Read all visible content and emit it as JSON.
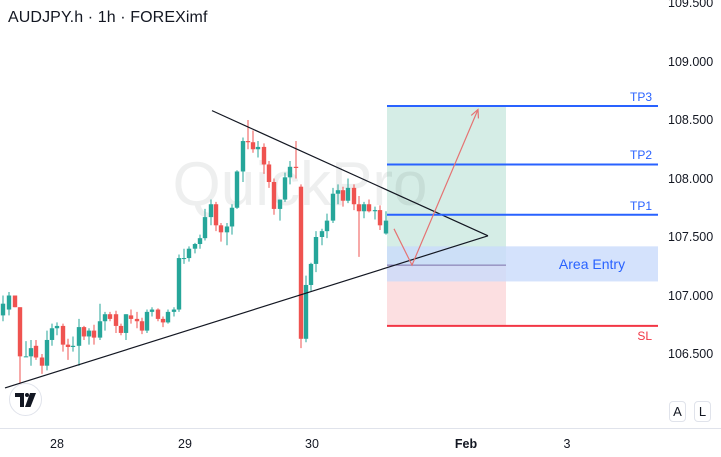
{
  "header": {
    "title": "AUDJPY.h · 1h · FOREXimf"
  },
  "watermark": "QuickPro",
  "price_axis": {
    "labels": [
      "109.500",
      "109.000",
      "108.500",
      "108.000",
      "107.500",
      "107.000",
      "106.500"
    ]
  },
  "time_axis": {
    "labels": [
      "28",
      "29",
      "30",
      "Feb",
      "3"
    ]
  },
  "scale_buttons": {
    "auto": "A",
    "log": "L"
  },
  "levels": {
    "tp3": "TP3",
    "tp2": "TP2",
    "tp1": "TP1",
    "area_entry": "Area Entry",
    "sl": "SL"
  },
  "colors": {
    "up": "#26a69a",
    "down": "#ef5350",
    "tp_line": "#2962ff",
    "sl_line": "#f23645",
    "profit_zone": "#d5ede6",
    "loss_zone": "#fcdfe1",
    "entry_zone": "#c9dbfb",
    "arrow": "#e57373"
  },
  "chart_data": {
    "type": "candlestick",
    "title": "AUDJPY.h · 1h · FOREXimf",
    "xlabel": "",
    "ylabel": "",
    "ylim": [
      106.2,
      109.5
    ],
    "x_ticks": [
      "28",
      "29",
      "30",
      "Feb",
      "3"
    ],
    "y_ticks": [
      106.5,
      107.0,
      107.5,
      108.0,
      108.5,
      109.0,
      109.5
    ],
    "grid": false,
    "annotations": {
      "TP3": 108.62,
      "TP2": 108.12,
      "TP1": 107.69,
      "Area Entry": [
        107.12,
        107.42
      ],
      "entry_price": 107.26,
      "SL": 106.74,
      "symmetrical_triangle": {
        "upper_line": [
          [
            212,
            108.58
          ],
          [
            488,
            107.51
          ]
        ],
        "lower_line": [
          [
            5,
            106.21
          ],
          [
            488,
            107.51
          ]
        ]
      },
      "projected_path": [
        [
          394,
          107.57
        ],
        [
          412,
          107.26
        ],
        [
          478,
          108.59
        ]
      ]
    },
    "candles": [
      {
        "x": 3,
        "o": 106.83,
        "h": 107.0,
        "l": 106.78,
        "c": 106.93
      },
      {
        "x": 9,
        "o": 106.88,
        "h": 107.03,
        "l": 106.83,
        "c": 107.0
      },
      {
        "x": 15,
        "o": 107.0,
        "h": 107.0,
        "l": 106.9,
        "c": 106.9
      },
      {
        "x": 20,
        "o": 106.9,
        "h": 106.9,
        "l": 106.22,
        "c": 106.48
      },
      {
        "x": 26,
        "o": 106.48,
        "h": 106.61,
        "l": 106.48,
        "c": 106.48
      },
      {
        "x": 31,
        "o": 106.48,
        "h": 106.62,
        "l": 106.4,
        "c": 106.55
      },
      {
        "x": 36,
        "o": 106.57,
        "h": 106.62,
        "l": 106.45,
        "c": 106.47
      },
      {
        "x": 42,
        "o": 106.47,
        "h": 106.5,
        "l": 106.33,
        "c": 106.4
      },
      {
        "x": 47,
        "o": 106.4,
        "h": 106.7,
        "l": 106.36,
        "c": 106.62
      },
      {
        "x": 52,
        "o": 106.62,
        "h": 106.76,
        "l": 106.57,
        "c": 106.72
      },
      {
        "x": 57,
        "o": 106.72,
        "h": 106.77,
        "l": 106.66,
        "c": 106.74
      },
      {
        "x": 63,
        "o": 106.74,
        "h": 106.76,
        "l": 106.52,
        "c": 106.58
      },
      {
        "x": 68,
        "o": 106.58,
        "h": 106.63,
        "l": 106.45,
        "c": 106.56
      },
      {
        "x": 73,
        "o": 106.56,
        "h": 106.65,
        "l": 106.52,
        "c": 106.57
      },
      {
        "x": 79,
        "o": 106.57,
        "h": 106.8,
        "l": 106.4,
        "c": 106.73
      },
      {
        "x": 84,
        "o": 106.73,
        "h": 106.74,
        "l": 106.62,
        "c": 106.65
      },
      {
        "x": 89,
        "o": 106.65,
        "h": 106.72,
        "l": 106.58,
        "c": 106.7
      },
      {
        "x": 94,
        "o": 106.7,
        "h": 106.75,
        "l": 106.58,
        "c": 106.64
      },
      {
        "x": 100,
        "o": 106.64,
        "h": 106.93,
        "l": 106.62,
        "c": 106.78
      },
      {
        "x": 105,
        "o": 106.78,
        "h": 106.86,
        "l": 106.7,
        "c": 106.84
      },
      {
        "x": 110,
        "o": 106.84,
        "h": 106.86,
        "l": 106.78,
        "c": 106.8
      },
      {
        "x": 116,
        "o": 106.84,
        "h": 106.87,
        "l": 106.68,
        "c": 106.74
      },
      {
        "x": 121,
        "o": 106.74,
        "h": 106.76,
        "l": 106.66,
        "c": 106.68
      },
      {
        "x": 126,
        "o": 106.68,
        "h": 106.84,
        "l": 106.62,
        "c": 106.84
      },
      {
        "x": 131,
        "o": 106.83,
        "h": 106.88,
        "l": 106.76,
        "c": 106.8
      },
      {
        "x": 137,
        "o": 106.8,
        "h": 106.86,
        "l": 106.72,
        "c": 106.78
      },
      {
        "x": 142,
        "o": 106.78,
        "h": 106.81,
        "l": 106.67,
        "c": 106.7
      },
      {
        "x": 147,
        "o": 106.7,
        "h": 106.88,
        "l": 106.68,
        "c": 106.86
      },
      {
        "x": 152,
        "o": 106.86,
        "h": 106.9,
        "l": 106.82,
        "c": 106.88
      },
      {
        "x": 158,
        "o": 106.88,
        "h": 106.89,
        "l": 106.78,
        "c": 106.8
      },
      {
        "x": 163,
        "o": 106.8,
        "h": 106.82,
        "l": 106.73,
        "c": 106.77
      },
      {
        "x": 168,
        "o": 106.77,
        "h": 106.88,
        "l": 106.76,
        "c": 106.86
      },
      {
        "x": 174,
        "o": 106.86,
        "h": 106.9,
        "l": 106.82,
        "c": 106.88
      },
      {
        "x": 179,
        "o": 106.88,
        "h": 107.35,
        "l": 106.86,
        "c": 107.32
      },
      {
        "x": 184,
        "o": 107.32,
        "h": 107.4,
        "l": 107.27,
        "c": 107.32
      },
      {
        "x": 189,
        "o": 107.32,
        "h": 107.42,
        "l": 107.29,
        "c": 107.4
      },
      {
        "x": 195,
        "o": 107.4,
        "h": 107.45,
        "l": 107.36,
        "c": 107.44
      },
      {
        "x": 200,
        "o": 107.44,
        "h": 107.52,
        "l": 107.4,
        "c": 107.49
      },
      {
        "x": 205,
        "o": 107.49,
        "h": 107.74,
        "l": 107.47,
        "c": 107.67
      },
      {
        "x": 211,
        "o": 107.67,
        "h": 107.82,
        "l": 107.6,
        "c": 107.78
      },
      {
        "x": 216,
        "o": 107.78,
        "h": 107.8,
        "l": 107.55,
        "c": 107.6
      },
      {
        "x": 221,
        "o": 107.6,
        "h": 107.62,
        "l": 107.46,
        "c": 107.54
      },
      {
        "x": 227,
        "o": 107.54,
        "h": 107.62,
        "l": 107.43,
        "c": 107.59
      },
      {
        "x": 232,
        "o": 107.59,
        "h": 107.78,
        "l": 107.52,
        "c": 107.75
      },
      {
        "x": 237,
        "o": 107.75,
        "h": 108.07,
        "l": 107.74,
        "c": 108.06
      },
      {
        "x": 243,
        "o": 108.06,
        "h": 108.35,
        "l": 107.97,
        "c": 108.32
      },
      {
        "x": 248,
        "o": 108.32,
        "h": 108.5,
        "l": 108.25,
        "c": 108.31
      },
      {
        "x": 253,
        "o": 108.31,
        "h": 108.41,
        "l": 108.22,
        "c": 108.25
      },
      {
        "x": 258,
        "o": 108.25,
        "h": 108.32,
        "l": 108.18,
        "c": 108.27
      },
      {
        "x": 264,
        "o": 108.27,
        "h": 108.3,
        "l": 108.04,
        "c": 108.12
      },
      {
        "x": 269,
        "o": 108.12,
        "h": 108.15,
        "l": 107.92,
        "c": 107.97
      },
      {
        "x": 274,
        "o": 107.97,
        "h": 108.0,
        "l": 107.69,
        "c": 107.74
      },
      {
        "x": 280,
        "o": 107.74,
        "h": 107.82,
        "l": 107.64,
        "c": 107.82
      },
      {
        "x": 285,
        "o": 107.82,
        "h": 108.05,
        "l": 107.8,
        "c": 108.01
      },
      {
        "x": 290,
        "o": 108.01,
        "h": 108.15,
        "l": 107.95,
        "c": 108.1
      },
      {
        "x": 296,
        "o": 108.1,
        "h": 108.32,
        "l": 108.0,
        "c": 108.09
      },
      {
        "x": 301,
        "o": 107.93,
        "h": 107.95,
        "l": 106.55,
        "c": 106.63
      },
      {
        "x": 306,
        "o": 106.63,
        "h": 107.17,
        "l": 106.6,
        "c": 107.09
      },
      {
        "x": 311,
        "o": 107.09,
        "h": 107.28,
        "l": 107.04,
        "c": 107.27
      },
      {
        "x": 316,
        "o": 107.27,
        "h": 107.55,
        "l": 107.2,
        "c": 107.5
      },
      {
        "x": 322,
        "o": 107.5,
        "h": 107.57,
        "l": 107.43,
        "c": 107.55
      },
      {
        "x": 327,
        "o": 107.55,
        "h": 107.7,
        "l": 107.49,
        "c": 107.64
      },
      {
        "x": 333,
        "o": 107.64,
        "h": 107.92,
        "l": 107.62,
        "c": 107.87
      },
      {
        "x": 338,
        "o": 107.87,
        "h": 107.95,
        "l": 107.78,
        "c": 107.9
      },
      {
        "x": 343,
        "o": 107.9,
        "h": 107.93,
        "l": 107.76,
        "c": 107.81
      },
      {
        "x": 348,
        "o": 107.81,
        "h": 108.0,
        "l": 107.79,
        "c": 107.92
      },
      {
        "x": 354,
        "o": 107.92,
        "h": 107.95,
        "l": 107.73,
        "c": 107.78
      },
      {
        "x": 359,
        "o": 107.78,
        "h": 107.85,
        "l": 107.33,
        "c": 107.72
      },
      {
        "x": 364,
        "o": 107.72,
        "h": 107.8,
        "l": 107.66,
        "c": 107.78
      },
      {
        "x": 369,
        "o": 107.78,
        "h": 107.82,
        "l": 107.71,
        "c": 107.72
      },
      {
        "x": 375,
        "o": 107.72,
        "h": 107.76,
        "l": 107.65,
        "c": 107.73
      },
      {
        "x": 380,
        "o": 107.73,
        "h": 107.77,
        "l": 107.56,
        "c": 107.6
      },
      {
        "x": 386,
        "o": 107.53,
        "h": 107.72,
        "l": 107.52,
        "c": 107.64
      }
    ]
  }
}
